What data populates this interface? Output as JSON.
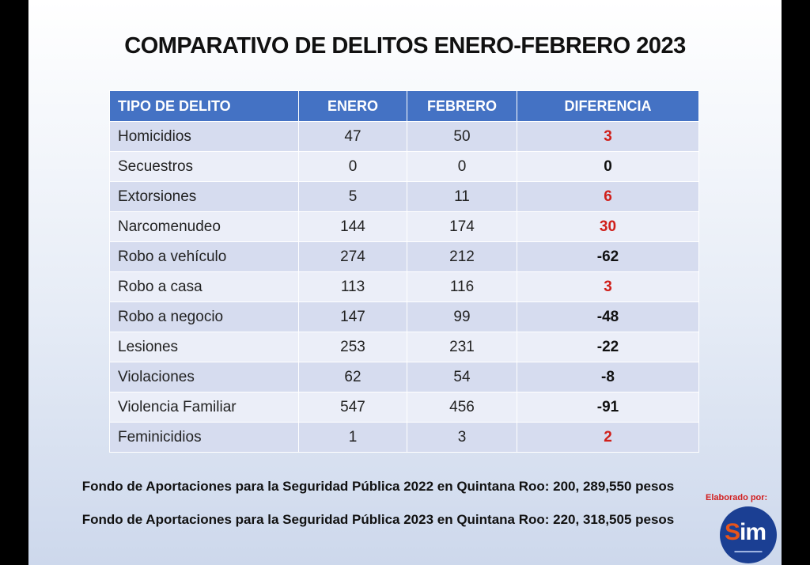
{
  "title": "COMPARATIVO DE DELITOS ENERO-FEBRERO 2023",
  "table": {
    "headers": [
      "TIPO DE DELITO",
      "ENERO",
      "FEBRERO",
      "DIFERENCIA"
    ],
    "rows": [
      {
        "tipo": "Homicidios",
        "enero": "47",
        "febrero": "50",
        "diferencia": "3",
        "trend": "pos"
      },
      {
        "tipo": "Secuestros",
        "enero": "0",
        "febrero": "0",
        "diferencia": "0",
        "trend": "neg"
      },
      {
        "tipo": "Extorsiones",
        "enero": "5",
        "febrero": "11",
        "diferencia": "6",
        "trend": "pos"
      },
      {
        "tipo": "Narcomenudeo",
        "enero": "144",
        "febrero": "174",
        "diferencia": "30",
        "trend": "pos"
      },
      {
        "tipo": "Robo a vehículo",
        "enero": "274",
        "febrero": "212",
        "diferencia": "-62",
        "trend": "neg"
      },
      {
        "tipo": "Robo a casa",
        "enero": "113",
        "febrero": "116",
        "diferencia": "3",
        "trend": "pos"
      },
      {
        "tipo": "Robo a negocio",
        "enero": "147",
        "febrero": "99",
        "diferencia": "-48",
        "trend": "neg"
      },
      {
        "tipo": "Lesiones",
        "enero": "253",
        "febrero": "231",
        "diferencia": "-22",
        "trend": "neg"
      },
      {
        "tipo": "Violaciones",
        "enero": "62",
        "febrero": "54",
        "diferencia": "-8",
        "trend": "neg"
      },
      {
        "tipo": "Violencia Familiar",
        "enero": "547",
        "febrero": "456",
        "diferencia": "-91",
        "trend": "neg"
      },
      {
        "tipo": "Feminicidios",
        "enero": "1",
        "febrero": "3",
        "diferencia": "2",
        "trend": "pos"
      }
    ]
  },
  "fund_2022": "Fondo de Aportaciones para la Seguridad Pública 2022 en Quintana Roo: 200, 289,550 pesos",
  "fund_2023": "Fondo de Aportaciones para la Seguridad Pública 2023 en Quintana Roo: 220, 318,505 pesos",
  "credit": "Elaborado por:",
  "logo": {
    "wordmark": "Sim",
    "icon": "sim-logo"
  },
  "colors": {
    "header_bg": "#4472c4",
    "increase": "#d0201b",
    "decrease": "#111111"
  }
}
